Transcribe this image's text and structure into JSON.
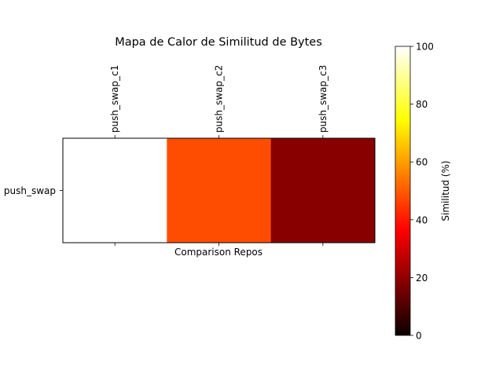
{
  "chart_data": {
    "type": "heatmap",
    "title": "Mapa de Calor de Similitud de Bytes",
    "xlabel": "Comparison Repos",
    "ylabel": "",
    "x_categories": [
      "push_swap_c1",
      "push_swap_c2",
      "push_swap_c3"
    ],
    "y_categories": [
      "push_swap"
    ],
    "values": [
      [
        100,
        48,
        18
      ]
    ],
    "colormap": "hot",
    "colorbar": {
      "label": "Similitud (%)",
      "range": [
        0,
        100
      ],
      "ticks": [
        "0",
        "20",
        "40",
        "60",
        "80",
        "100"
      ]
    },
    "x_tick_position": "top",
    "grid": false
  }
}
